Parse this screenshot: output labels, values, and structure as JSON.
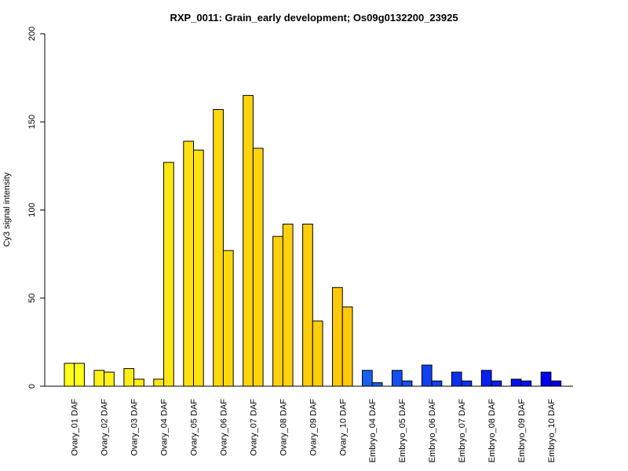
{
  "chart_data": {
    "type": "bar",
    "title": "RXP_0011: Grain_early development; Os09g0132200_23925",
    "xlabel": "",
    "ylabel": "Cy3 signal intensity",
    "ylim": [
      0,
      200
    ],
    "yticks": [
      0,
      50,
      100,
      150,
      200
    ],
    "grid": false,
    "categories": [
      "Ovary_01 DAF",
      "Ovary_02 DAF",
      "Ovary_03 DAF",
      "Ovary_04 DAF",
      "Ovary_05 DAF",
      "Ovary_06 DAF",
      "Ovary_07 DAF",
      "Ovary_08 DAF",
      "Ovary_09 DAF",
      "Ovary_10 DAF",
      "Embryo_04 DAF",
      "Embryo_05 DAF",
      "Embryo_06 DAF",
      "Embryo_07 DAF",
      "Embryo_08 DAF",
      "Embryo_09 DAF",
      "Embryo_10 DAF"
    ],
    "series": [
      {
        "values": [
          13,
          9,
          10,
          4,
          139,
          157,
          165,
          85,
          92,
          56,
          9,
          9,
          12,
          8,
          9,
          4,
          8
        ]
      },
      {
        "values": [
          13,
          8,
          4,
          127,
          134,
          77,
          135,
          92,
          37,
          45,
          2,
          3,
          3,
          3,
          3,
          3,
          3
        ]
      }
    ],
    "colors": [
      "#ffff1a",
      "#fff316",
      "#ffee14",
      "#ffe812",
      "#ffe010",
      "#ffd90e",
      "#ffd40c",
      "#ffd10b",
      "#ffce0a",
      "#ffc809",
      "#1860f0",
      "#1450f0",
      "#1040f0",
      "#0c30f0",
      "#0820f0",
      "#0510f0",
      "#0000f0"
    ]
  }
}
